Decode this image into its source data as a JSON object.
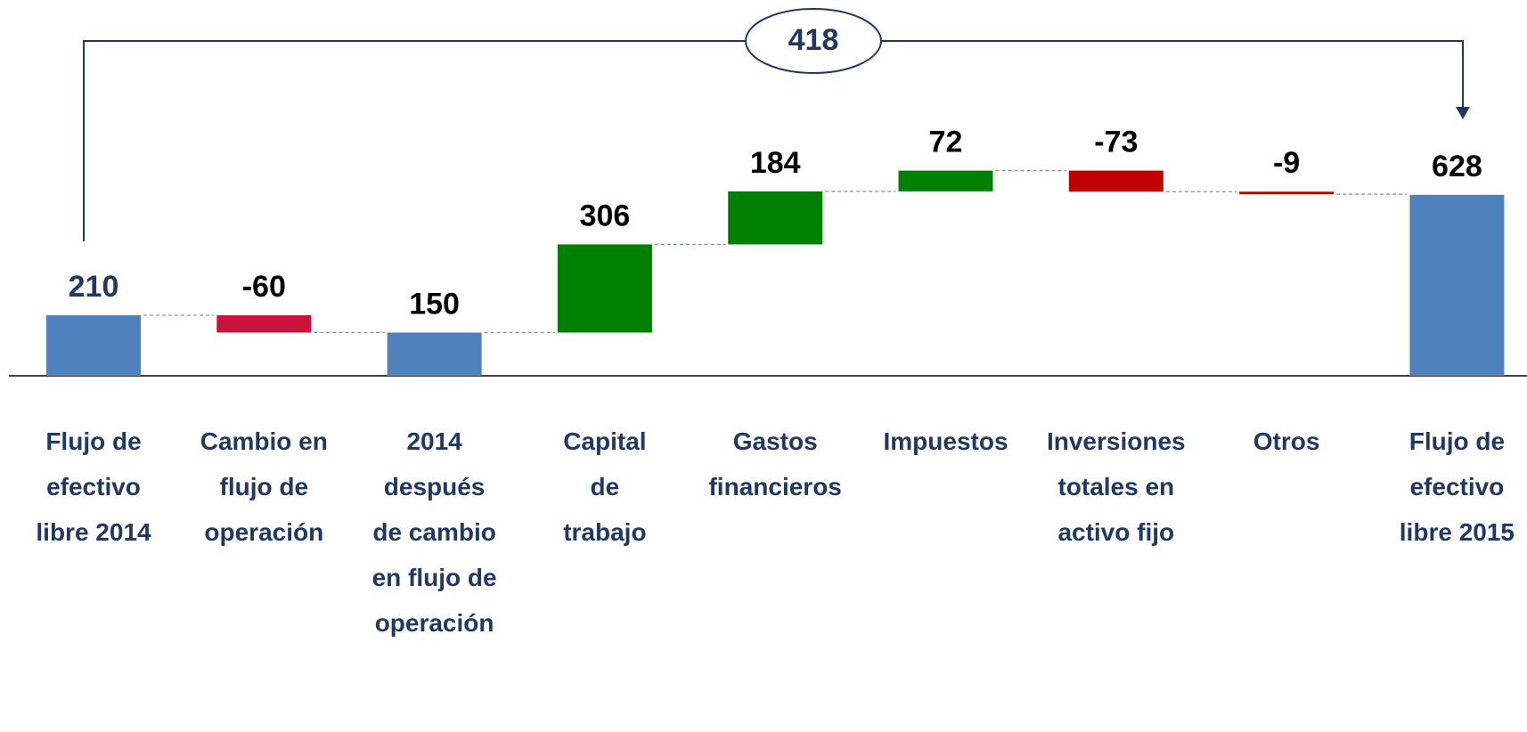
{
  "chart_data": {
    "type": "waterfall",
    "categories": [
      "Flujo de efectivo libre 2014",
      "Cambio en flujo de operación",
      "2014 después de cambio en flujo de operación",
      "Capital de trabajo",
      "Gastos financieros",
      "Impuestos",
      "Inversiones totales en activo fijo",
      "Otros",
      "Flujo de efectivo libre 2015"
    ],
    "values": [
      210,
      -60,
      150,
      306,
      184,
      72,
      -73,
      -9,
      628
    ],
    "measures": [
      "total",
      "relative",
      "total",
      "relative",
      "relative",
      "relative",
      "relative",
      "relative",
      "total"
    ],
    "colors": [
      "#4f81bd",
      "#c8143c",
      "#4f81bd",
      "#008000",
      "#008000",
      "#008000",
      "#c00000",
      "#c00000",
      "#4f81bd"
    ],
    "label_colors": [
      "#1f3864",
      "#000000",
      "#000000",
      "#000000",
      "#000000",
      "#000000",
      "#000000",
      "#000000",
      "#000000"
    ],
    "annotation": "418"
  }
}
